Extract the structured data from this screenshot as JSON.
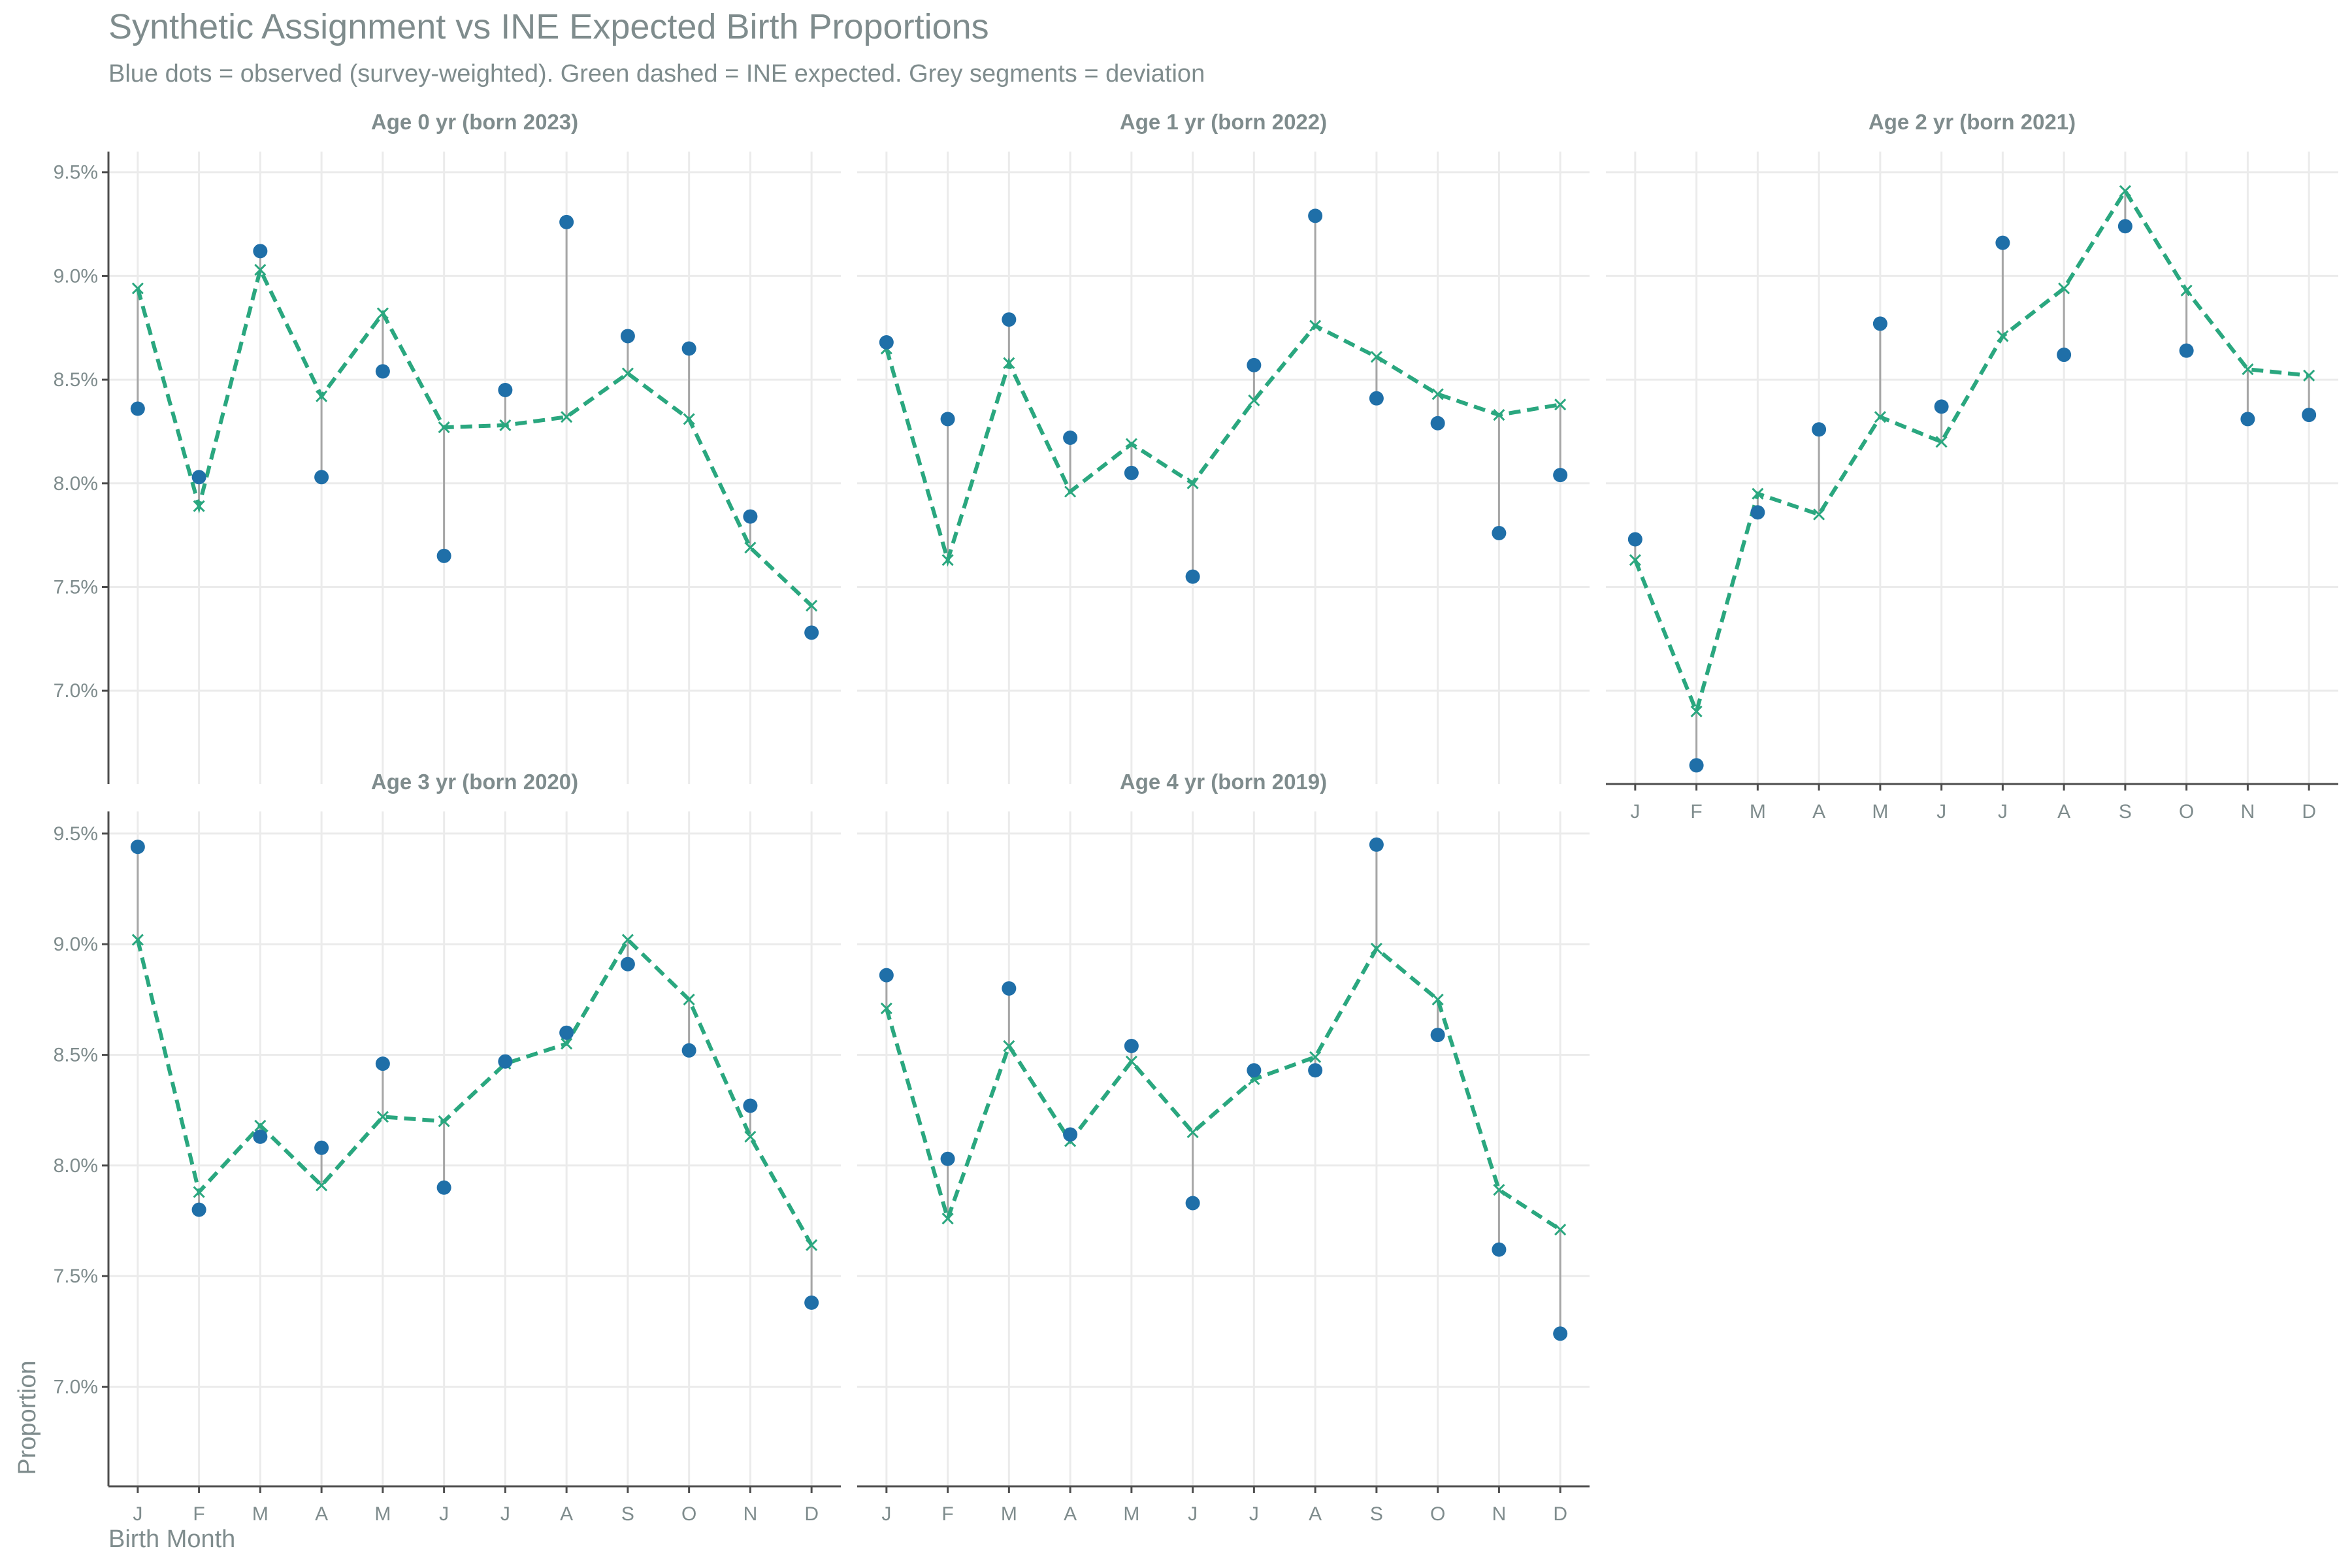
{
  "title": "Synthetic Assignment vs INE Expected Birth Proportions",
  "subtitle": "Blue dots = observed (survey-weighted). Green dashed = INE expected. Grey segments = deviation",
  "colors": {
    "observed": "#1f6fa8",
    "expected": "#2aa77f",
    "deviation": "#a6a6a6",
    "text": "#7f8c8d"
  },
  "chart_data": {
    "type": "scatter",
    "xlabel": "Birth Month",
    "ylabel": "Proportion",
    "x_tick_labels": [
      "J",
      "F",
      "M",
      "A",
      "M",
      "J",
      "J",
      "A",
      "S",
      "O",
      "N",
      "D"
    ],
    "y_ticks": [
      7.0,
      7.5,
      8.0,
      8.5,
      9.0,
      9.5
    ],
    "y_tick_labels": [
      "7.0%",
      "7.5%",
      "8.0%",
      "8.5%",
      "9.0%",
      "9.5%"
    ],
    "ylim": [
      6.55,
      9.6
    ],
    "grid": true,
    "facets": [
      {
        "label": "Age 0 yr (born 2023)",
        "observed": [
          8.36,
          8.03,
          9.12,
          8.03,
          8.54,
          7.65,
          8.45,
          9.26,
          8.71,
          8.65,
          7.84,
          7.28
        ],
        "expected": [
          8.94,
          7.89,
          9.03,
          8.42,
          8.82,
          8.27,
          8.28,
          8.32,
          8.53,
          8.31,
          7.69,
          7.41
        ]
      },
      {
        "label": "Age 1 yr (born 2022)",
        "observed": [
          8.68,
          8.31,
          8.79,
          8.22,
          8.05,
          7.55,
          8.57,
          9.29,
          8.41,
          8.29,
          7.76,
          8.04
        ],
        "expected": [
          8.65,
          7.63,
          8.58,
          7.96,
          8.19,
          8.0,
          8.4,
          8.76,
          8.61,
          8.43,
          8.33,
          8.38
        ]
      },
      {
        "label": "Age 2 yr (born 2021)",
        "observed": [
          7.73,
          6.64,
          7.86,
          8.26,
          8.77,
          8.37,
          9.16,
          8.62,
          9.24,
          8.64,
          8.31,
          8.33
        ],
        "expected": [
          7.63,
          6.9,
          7.95,
          7.85,
          8.32,
          8.2,
          8.71,
          8.94,
          9.41,
          8.93,
          8.55,
          8.52
        ]
      },
      {
        "label": "Age 3 yr (born 2020)",
        "observed": [
          9.44,
          7.8,
          8.13,
          8.08,
          8.46,
          7.9,
          8.47,
          8.6,
          8.91,
          8.52,
          8.27,
          7.38
        ],
        "expected": [
          9.02,
          7.88,
          8.18,
          7.91,
          8.22,
          8.2,
          8.46,
          8.55,
          9.02,
          8.75,
          8.13,
          7.64
        ]
      },
      {
        "label": "Age 4 yr (born 2019)",
        "observed": [
          8.86,
          8.03,
          8.8,
          8.14,
          8.54,
          7.83,
          8.43,
          8.43,
          9.45,
          8.59,
          7.62,
          7.24
        ],
        "expected": [
          8.71,
          7.76,
          8.54,
          8.11,
          8.47,
          8.15,
          8.39,
          8.49,
          8.98,
          8.75,
          7.89,
          7.71
        ]
      }
    ]
  }
}
